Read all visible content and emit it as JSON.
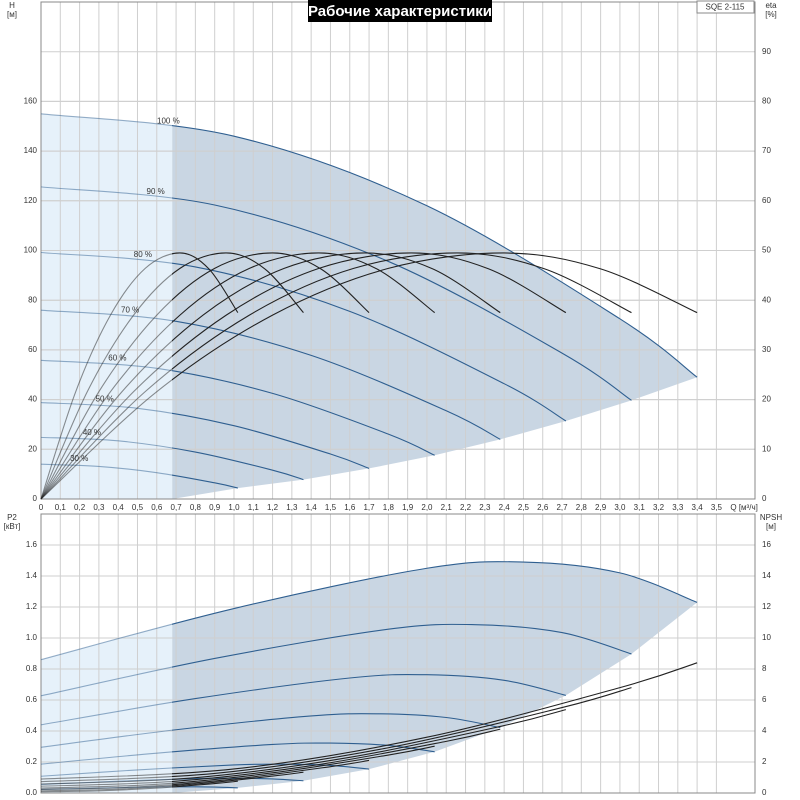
{
  "chart_data": [
    {
      "type": "line",
      "title": "Рабочие характеристики",
      "model": "SQE 2-115",
      "ylabel": [
        "H",
        "[м]"
      ],
      "y2label": [
        "eta",
        "[%]"
      ],
      "xlabel": "Q [м³/ч]",
      "xlim": [
        0,
        3.7
      ],
      "ylim": [
        0,
        200
      ],
      "y2lim": [
        0,
        100
      ],
      "xticks": [
        0,
        {
          "value": 0.1,
          "label": "0,1"
        },
        {
          "value": 0.2,
          "label": "0,2"
        },
        {
          "value": 0.3,
          "label": "0,3"
        },
        {
          "value": 0.4,
          "label": "0,4"
        },
        {
          "value": 0.5,
          "label": "0,5"
        },
        {
          "value": 0.6,
          "label": "0,6"
        },
        {
          "value": 0.7,
          "label": "0,7"
        },
        {
          "value": 0.8,
          "label": "0,8"
        },
        {
          "value": 0.9,
          "label": "0,9"
        },
        {
          "value": 1,
          "label": "1,0"
        },
        {
          "value": 1.1,
          "label": "1,1"
        },
        {
          "value": 1.2,
          "label": "1,2"
        },
        {
          "value": 1.3,
          "label": "1,3"
        },
        {
          "value": 1.4,
          "label": "1,4"
        },
        {
          "value": 1.5,
          "label": "1,5"
        },
        {
          "value": 1.6,
          "label": "1,6"
        },
        {
          "value": 1.7,
          "label": "1,7"
        },
        {
          "value": 1.8,
          "label": "1,8"
        },
        {
          "value": 1.9,
          "label": "1,9"
        },
        {
          "value": 2,
          "label": "2,0"
        },
        {
          "value": 2.1,
          "label": "2,1"
        },
        {
          "value": 2.2,
          "label": "2,2"
        },
        {
          "value": 2.3,
          "label": "2,3"
        },
        {
          "value": 2.4,
          "label": "2,4"
        },
        {
          "value": 2.5,
          "label": "2,5"
        },
        {
          "value": 2.6,
          "label": "2,6"
        },
        {
          "value": 2.7,
          "label": "2,7"
        },
        {
          "value": 2.8,
          "label": "2,8"
        },
        {
          "value": 2.9,
          "label": "2,9"
        },
        {
          "value": 3,
          "label": "3,0"
        },
        {
          "value": 3.1,
          "label": "3,1"
        },
        {
          "value": 3.2,
          "label": "3,2"
        },
        {
          "value": 3.3,
          "label": "3,3"
        },
        {
          "value": 3.4,
          "label": "3,4"
        },
        {
          "value": 3.5,
          "label": "3,5"
        }
      ],
      "yticks": [
        0,
        20,
        40,
        60,
        80,
        100,
        120,
        140,
        160
      ],
      "y2ticks": [
        0,
        10,
        20,
        30,
        40,
        50,
        60,
        70,
        80,
        90
      ],
      "grid": true,
      "operating_range_qmin": 0.68,
      "operating_area_color": "#c9d6e3",
      "extended_area_color": "#e6f1fa",
      "series": [
        {
          "name": "100 %",
          "color": "#2f5f90",
          "x": [
            0,
            1,
            2,
            3,
            3.4
          ],
          "values": [
            155,
            146,
            118,
            72.5,
            49
          ]
        },
        {
          "name": "90 %",
          "color": "#2f5f90",
          "x": [
            0,
            0.9,
            1.8,
            2.7,
            3.06
          ],
          "values": [
            125.6,
            118.3,
            95.6,
            58.7,
            39.7
          ]
        },
        {
          "name": "80 %",
          "color": "#2f5f90",
          "x": [
            0,
            0.8,
            1.6,
            2.4,
            2.72
          ],
          "values": [
            99.2,
            93.4,
            75.5,
            46.4,
            31.4
          ]
        },
        {
          "name": "70 %",
          "color": "#2f5f90",
          "x": [
            0,
            0.7,
            1.4,
            2.1,
            2.38
          ],
          "values": [
            76,
            71.5,
            57.8,
            35.5,
            24
          ]
        },
        {
          "name": "60 %",
          "color": "#2f5f90",
          "x": [
            0,
            0.6,
            1.2,
            1.8,
            2.04
          ],
          "values": [
            55.8,
            52.6,
            42.5,
            26.1,
            17.6
          ]
        },
        {
          "name": "50 %",
          "color": "#2f5f90",
          "x": [
            0,
            0.5,
            1,
            1.5,
            1.7
          ],
          "values": [
            38.8,
            36.5,
            29.5,
            18.1,
            12.3
          ]
        },
        {
          "name": "40 %",
          "color": "#2f5f90",
          "x": [
            0,
            0.4,
            0.8,
            1.2,
            1.36
          ],
          "values": [
            24.8,
            23.4,
            18.9,
            11.6,
            7.8
          ]
        },
        {
          "name": "30 %",
          "color": "#2f5f90",
          "x": [
            0,
            0.3,
            0.6,
            0.9,
            1.02
          ],
          "values": [
            14,
            13.1,
            10.6,
            6.5,
            4.4
          ]
        },
        {
          "axis": "y2",
          "color": "#222222",
          "x": [
            0,
            0.6,
            1.2,
            1.8,
            2.4,
            2.9,
            3.4
          ],
          "values": [
            0,
            21.6,
            37,
            46.4,
            49.5,
            46.3,
            37.5
          ]
        },
        {
          "axis": "y2",
          "color": "#222222",
          "x": [
            0,
            0.54,
            1.08,
            1.62,
            2.16,
            2.61,
            3.06
          ],
          "values": [
            0,
            21.6,
            37,
            46.4,
            49.5,
            46.3,
            37.5
          ]
        },
        {
          "axis": "y2",
          "color": "#222222",
          "x": [
            0,
            0.48,
            0.96,
            1.44,
            1.92,
            2.32,
            2.72
          ],
          "values": [
            0,
            21.6,
            37,
            46.4,
            49.5,
            46.3,
            37.5
          ]
        },
        {
          "axis": "y2",
          "color": "#222222",
          "x": [
            0,
            0.42,
            0.84,
            1.26,
            1.68,
            2.03,
            2.38
          ],
          "values": [
            0,
            21.6,
            37,
            46.4,
            49.5,
            46.3,
            37.5
          ]
        },
        {
          "axis": "y2",
          "color": "#222222",
          "x": [
            0,
            0.36,
            0.72,
            1.08,
            1.44,
            1.74,
            2.04
          ],
          "values": [
            0,
            21.6,
            37,
            46.4,
            49.5,
            46.3,
            37.5
          ]
        },
        {
          "axis": "y2",
          "color": "#222222",
          "x": [
            0,
            0.3,
            0.6,
            0.9,
            1.2,
            1.45,
            1.7
          ],
          "values": [
            0,
            21.6,
            37,
            46.4,
            49.5,
            46.3,
            37.5
          ]
        },
        {
          "axis": "y2",
          "color": "#222222",
          "x": [
            0,
            0.24,
            0.48,
            0.72,
            0.96,
            1.16,
            1.36
          ],
          "values": [
            0,
            21.6,
            37,
            46.4,
            49.5,
            46.3,
            37.5
          ]
        },
        {
          "axis": "y2",
          "color": "#222222",
          "x": [
            0,
            0.18,
            0.36,
            0.54,
            0.72,
            0.87,
            1.02
          ],
          "values": [
            0,
            21.6,
            37,
            46.4,
            49.5,
            46.3,
            37.5
          ]
        }
      ]
    },
    {
      "type": "line",
      "ylabel": [
        "P2",
        "[кВт]"
      ],
      "y2label": [
        "NPSH",
        "[м]"
      ],
      "xlim": [
        0,
        3.7
      ],
      "ylim": [
        0,
        1.8
      ],
      "y2lim": [
        0,
        18
      ],
      "yticks": [
        {
          "value": 0,
          "label": "0.0"
        },
        0.2,
        0.4,
        0.6,
        0.8,
        {
          "value": 1,
          "label": "1.0"
        },
        1.2,
        1.4,
        1.6
      ],
      "y2ticks": [
        0,
        2,
        4,
        6,
        8,
        10,
        12,
        14,
        16
      ],
      "grid": true,
      "operating_range_qmin": 0.68,
      "operating_area_color": "#c9d6e3",
      "extended_area_color": "#e6f1fa",
      "series": [
        {
          "color": "#2f5f90",
          "x": [
            0,
            1,
            2,
            2.5,
            3,
            3.4
          ],
          "values": [
            0.86,
            1.19,
            1.45,
            1.49,
            1.42,
            1.23
          ]
        },
        {
          "color": "#2f5f90",
          "x": [
            0,
            0.9,
            1.8,
            2.25,
            2.7,
            3.06
          ],
          "values": [
            0.627,
            0.868,
            1.057,
            1.086,
            1.035,
            0.897
          ]
        },
        {
          "color": "#2f5f90",
          "x": [
            0,
            0.8,
            1.6,
            2,
            2.4,
            2.72
          ],
          "values": [
            0.44,
            0.609,
            0.742,
            0.763,
            0.727,
            0.63
          ]
        },
        {
          "color": "#2f5f90",
          "x": [
            0,
            0.7,
            1.4,
            1.75,
            2.1,
            2.38
          ],
          "values": [
            0.295,
            0.408,
            0.497,
            0.511,
            0.487,
            0.422
          ]
        },
        {
          "color": "#2f5f90",
          "x": [
            0,
            0.6,
            1.2,
            1.5,
            1.8,
            2.04
          ],
          "values": [
            0.186,
            0.257,
            0.313,
            0.322,
            0.307,
            0.266
          ]
        },
        {
          "color": "#2f5f90",
          "x": [
            0,
            0.5,
            1,
            1.25,
            1.5,
            1.7
          ],
          "values": [
            0.108,
            0.149,
            0.181,
            0.186,
            0.178,
            0.154
          ]
        },
        {
          "color": "#2f5f90",
          "x": [
            0,
            0.4,
            0.8,
            1,
            1.2,
            1.36
          ],
          "values": [
            0.055,
            0.076,
            0.093,
            0.095,
            0.091,
            0.079
          ]
        },
        {
          "color": "#2f5f90",
          "x": [
            0,
            0.3,
            0.6,
            0.75,
            0.9,
            1.02
          ],
          "values": [
            0.023,
            0.032,
            0.039,
            0.04,
            0.038,
            0.033
          ]
        },
        {
          "axis": "y2",
          "color": "#222222",
          "x": [
            0,
            1,
            2,
            3,
            3.4
          ],
          "values": [
            0.9,
            1.55,
            3.6,
            6.8,
            8.4
          ]
        },
        {
          "axis": "y2",
          "color": "#222222",
          "x": [
            0,
            0.9,
            1.8,
            2.7,
            3.06
          ],
          "values": [
            0.73,
            1.26,
            2.92,
            5.51,
            6.8
          ]
        },
        {
          "axis": "y2",
          "color": "#222222",
          "x": [
            0,
            0.8,
            1.6,
            2.4,
            2.72
          ],
          "values": [
            0.58,
            0.99,
            2.3,
            4.35,
            5.38
          ]
        },
        {
          "axis": "y2",
          "color": "#222222",
          "x": [
            0,
            0.7,
            1.4,
            2.1,
            2.38
          ],
          "values": [
            0.44,
            0.76,
            1.76,
            3.33,
            4.12
          ]
        },
        {
          "axis": "y2",
          "color": "#222222",
          "x": [
            0,
            0.6,
            1.2,
            1.8,
            2.04
          ],
          "values": [
            0.32,
            0.56,
            1.3,
            2.45,
            3.02
          ]
        },
        {
          "axis": "y2",
          "color": "#222222",
          "x": [
            0,
            0.5,
            1,
            1.5,
            1.7
          ],
          "values": [
            0.23,
            0.39,
            0.9,
            1.7,
            2.1
          ]
        },
        {
          "axis": "y2",
          "color": "#222222",
          "x": [
            0,
            0.4,
            0.8,
            1.2,
            1.36
          ],
          "values": [
            0.14,
            0.25,
            0.58,
            1.09,
            1.34
          ]
        },
        {
          "axis": "y2",
          "color": "#222222",
          "x": [
            0,
            0.3,
            0.6,
            0.9,
            1.02
          ],
          "values": [
            0.08,
            0.14,
            0.32,
            0.61,
            0.76
          ]
        }
      ]
    }
  ]
}
